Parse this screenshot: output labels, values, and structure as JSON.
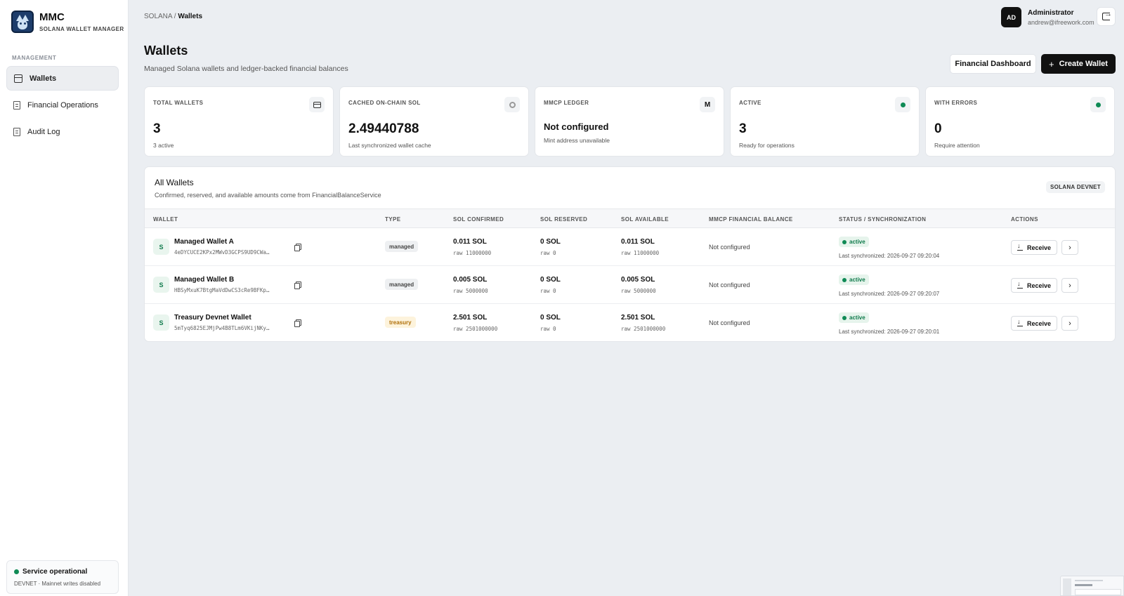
{
  "brand": {
    "name": "MMC",
    "subtitle": "SOLANA WALLET MANAGER"
  },
  "sidebar": {
    "section": "MANAGEMENT",
    "items": [
      {
        "label": "Wallets",
        "icon": "wallet-icon",
        "active": true
      },
      {
        "label": "Financial Operations",
        "icon": "document-icon",
        "active": false
      },
      {
        "label": "Audit Log",
        "icon": "document-icon",
        "active": false
      }
    ],
    "service": {
      "status": "Service operational",
      "detail": "DEVNET · Mainnet writes disabled",
      "color": "#0f8a55"
    }
  },
  "header": {
    "breadcrumb_root": "SOLANA",
    "breadcrumb_sep": " / ",
    "breadcrumb_current": "Wallets",
    "user": {
      "initials": "AD",
      "name": "Administrator",
      "email": "andrew@ifreework.com"
    }
  },
  "page": {
    "title": "Wallets",
    "subtitle": "Managed Solana wallets and ledger-backed financial balances",
    "financial_dashboard_label": "Financial Dashboard",
    "create_wallet_label": "Create Wallet"
  },
  "stats": [
    {
      "label": "TOTAL WALLETS",
      "value": "3",
      "foot": "3 active",
      "icon": "wallet-icon"
    },
    {
      "label": "CACHED ON-CHAIN SOL",
      "value": "2.49440788",
      "foot": "Last synchronized wallet cache",
      "icon": "gear-icon"
    },
    {
      "label": "MMCP LEDGER",
      "value": "Not configured",
      "foot": "Mint address unavailable",
      "icon_text": "M"
    },
    {
      "label": "ACTIVE",
      "value": "3",
      "foot": "Ready for operations",
      "icon": "status-dot-icon"
    },
    {
      "label": "WITH ERRORS",
      "value": "0",
      "foot": "Require attention",
      "icon": "status-dot-icon"
    }
  ],
  "table": {
    "title": "All Wallets",
    "subtitle": "Confirmed, reserved, and available amounts come from FinancialBalanceService",
    "network_badge": "SOLANA DEVNET",
    "columns": [
      "WALLET",
      "TYPE",
      "SOL CONFIRMED",
      "SOL RESERVED",
      "SOL AVAILABLE",
      "MMCP FINANCIAL BALANCE",
      "STATUS / SYNCHRONIZATION",
      "ACTIONS"
    ],
    "rows": [
      {
        "avatar": "S",
        "name": "Managed Wallet A",
        "address": "4eDYCUCE2KPx2MWvD3GCPS9UD9CWa…",
        "type": "managed",
        "confirmed": "0.011 SOL",
        "confirmed_raw": "raw 11000000",
        "reserved": "0 SOL",
        "reserved_raw": "raw 0",
        "available": "0.011 SOL",
        "available_raw": "raw 11000000",
        "mmcp": "Not configured",
        "status": "active",
        "sync": "Last synchronized: 2026-09-27 09:20:04",
        "receive_label": "Receive"
      },
      {
        "avatar": "S",
        "name": "Managed Wallet B",
        "address": "HBSyMxuK7BtgMaVdDwCS3cRe9BFKp…",
        "type": "managed",
        "confirmed": "0.005 SOL",
        "confirmed_raw": "raw 5000000",
        "reserved": "0 SOL",
        "reserved_raw": "raw 0",
        "available": "0.005 SOL",
        "available_raw": "raw 5000000",
        "mmcp": "Not configured",
        "status": "active",
        "sync": "Last synchronized: 2026-09-27 09:20:07",
        "receive_label": "Receive"
      },
      {
        "avatar": "S",
        "name": "Treasury Devnet Wallet",
        "address": "5mTyq6825EJMjPw4B8TLm6VKijNKy…",
        "type": "treasury",
        "confirmed": "2.501 SOL",
        "confirmed_raw": "raw 2501000000",
        "reserved": "0 SOL",
        "reserved_raw": "raw 0",
        "available": "2.501 SOL",
        "available_raw": "raw 2501000000",
        "mmcp": "Not configured",
        "status": "active",
        "sync": "Last synchronized: 2026-09-27 09:20:01",
        "receive_label": "Receive"
      }
    ]
  },
  "colors": {
    "accent_dark": "#111111",
    "status_green": "#0f8a55",
    "treasury_amber": "#b0700a",
    "background": "#ebeef2"
  }
}
